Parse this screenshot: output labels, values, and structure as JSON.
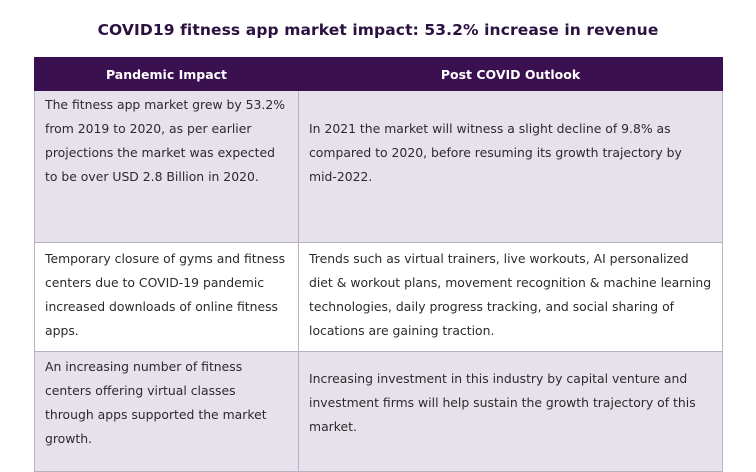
{
  "title": "COVID19 fitness app market impact: 53.2% increase in revenue",
  "table": {
    "headers": [
      "Pandemic Impact",
      "Post COVID Outlook"
    ],
    "rows": [
      {
        "impact": "The fitness app market grew by 53.2% from 2019 to 2020, as per earlier projections the market was expected to be over USD 2.8 Billion in 2020.",
        "outlook": "In 2021 the market will witness a slight decline of 9.8% as compared to 2020, before resuming its growth trajectory by mid-2022."
      },
      {
        "impact": "Temporary closure of gyms and fitness centers due to COVID-19 pandemic increased downloads of online fitness apps.",
        "outlook": "Trends such as virtual trainers, live workouts, AI personalized diet & workout plans, movement recognition & machine learning technologies, daily progress tracking, and social sharing of locations are gaining traction."
      },
      {
        "impact": "An increasing number of fitness centers offering virtual classes through apps supported the market growth.",
        "outlook": "Increasing investment in this industry by capital venture and investment firms will help sustain the growth trajectory of this market."
      }
    ]
  },
  "colors": {
    "header_bg": "#3b1050",
    "title": "#2a1140",
    "row_shade": "#e7e1ec",
    "border": "#b9b1c3"
  }
}
